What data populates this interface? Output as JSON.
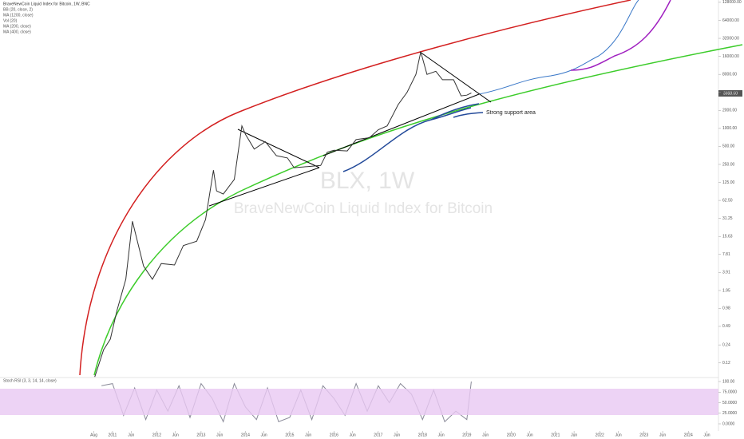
{
  "chart_data": {
    "type": "line",
    "title": "BraveNewCoin Liquid Index for Bitcoin, 1W, BNC",
    "indicators": [
      "BB (20, close, 2)",
      "MA (1200, close)",
      "Vol (20)",
      "MA (200, close)",
      "MA (400, close)"
    ],
    "watermark": "BLX, 1W",
    "watermark_subtitle": "BraveNewCoin Liquid Index for Bitcoin",
    "annotation": "Strong support area",
    "last_price_label": "3988.00",
    "log_scale": true,
    "color": "#333333",
    "x": [
      2010.6,
      2010.8,
      2010.95,
      2011.1,
      2011.3,
      2011.45,
      2011.55,
      2011.7,
      2011.9,
      2012.1,
      2012.4,
      2012.6,
      2012.9,
      2013.1,
      2013.28,
      2013.35,
      2013.5,
      2013.75,
      2013.92,
      2014.0,
      2014.2,
      2014.45,
      2014.7,
      2014.95,
      2015.1,
      2015.4,
      2015.7,
      2015.85,
      2016.0,
      2016.3,
      2016.5,
      2016.8,
      2017.0,
      2017.2,
      2017.45,
      2017.65,
      2017.85,
      2017.96,
      2018.1,
      2018.3,
      2018.45,
      2018.7,
      2018.87,
      2019.0,
      2019.1
    ],
    "values": [
      0.07,
      0.2,
      0.3,
      0.9,
      3,
      28,
      14,
      5,
      3,
      5.5,
      5.2,
      11,
      13,
      30,
      200,
      90,
      80,
      140,
      1100,
      800,
      450,
      600,
      350,
      320,
      220,
      230,
      240,
      400,
      430,
      420,
      650,
      700,
      950,
      1100,
      2500,
      4000,
      8000,
      19000,
      8000,
      9000,
      6500,
      6500,
      3500,
      3600,
      3900
    ],
    "xlim": [
      2008.46,
      2024.68
    ],
    "xticks": [
      {
        "value": 2010.58,
        "label": "Aug"
      },
      {
        "value": 2011,
        "label": "2011"
      },
      {
        "value": 2011.42,
        "label": "Jun"
      },
      {
        "value": 2012,
        "label": "2012"
      },
      {
        "value": 2012.42,
        "label": "Jun"
      },
      {
        "value": 2013,
        "label": "2013"
      },
      {
        "value": 2013.42,
        "label": "Jun"
      },
      {
        "value": 2014,
        "label": "2014"
      },
      {
        "value": 2014.42,
        "label": "Jun"
      },
      {
        "value": 2015,
        "label": "2015"
      },
      {
        "value": 2015.42,
        "label": "Jun"
      },
      {
        "value": 2016,
        "label": "2016"
      },
      {
        "value": 2016.42,
        "label": "Jun"
      },
      {
        "value": 2017,
        "label": "2017"
      },
      {
        "value": 2017.42,
        "label": "Jun"
      },
      {
        "value": 2018,
        "label": "2018"
      },
      {
        "value": 2018.42,
        "label": "Jun"
      },
      {
        "value": 2019,
        "label": "2019"
      },
      {
        "value": 2019.42,
        "label": "Jun"
      },
      {
        "value": 2020,
        "label": "2020"
      },
      {
        "value": 2020.42,
        "label": "Jun"
      },
      {
        "value": 2021,
        "label": "2021"
      },
      {
        "value": 2021.42,
        "label": "Jun"
      },
      {
        "value": 2022,
        "label": "2022"
      },
      {
        "value": 2022.42,
        "label": "Jun"
      },
      {
        "value": 2023,
        "label": "2023"
      },
      {
        "value": 2023.42,
        "label": "Jun"
      },
      {
        "value": 2024,
        "label": "2024"
      },
      {
        "value": 2024.42,
        "label": "Jun"
      }
    ],
    "ylim": [
      0.075,
      140000
    ],
    "yticks": [
      {
        "value": 128000,
        "label": "128000.00"
      },
      {
        "value": 64000,
        "label": "64000.00"
      },
      {
        "value": 32000,
        "label": "32000.00"
      },
      {
        "value": 16000,
        "label": "16000.00"
      },
      {
        "value": 8000,
        "label": "8000.00"
      },
      {
        "value": 4000,
        "label": "4000.00"
      },
      {
        "value": 2000,
        "label": "2000.00"
      },
      {
        "value": 1000,
        "label": "1000.00"
      },
      {
        "value": 500,
        "label": "500.00"
      },
      {
        "value": 250,
        "label": "250.00"
      },
      {
        "value": 125,
        "label": "125.00"
      },
      {
        "value": 62.5,
        "label": "62.50"
      },
      {
        "value": 31.25,
        "label": "31.25"
      },
      {
        "value": 15.63,
        "label": "15.63"
      },
      {
        "value": 7.81,
        "label": "7.81"
      },
      {
        "value": 3.91,
        "label": "3.91"
      },
      {
        "value": 1.95,
        "label": "1.95"
      },
      {
        "value": 0.98,
        "label": "0.98"
      },
      {
        "value": 0.49,
        "label": "0.49"
      },
      {
        "value": 0.24,
        "label": "0.24"
      },
      {
        "value": 0.12,
        "label": "0.12"
      }
    ],
    "stoch": {
      "title": "Stoch RSI (3, 3, 14, 14, close)",
      "color": "#8a8a99",
      "x": [
        2010.75,
        2011.0,
        2011.25,
        2011.5,
        2011.75,
        2012.0,
        2012.25,
        2012.5,
        2012.75,
        2013.0,
        2013.25,
        2013.5,
        2013.75,
        2014.0,
        2014.25,
        2014.5,
        2014.75,
        2015.0,
        2015.25,
        2015.5,
        2015.75,
        2016.0,
        2016.25,
        2016.5,
        2016.75,
        2017.0,
        2017.25,
        2017.5,
        2017.75,
        2018.0,
        2018.25,
        2018.5,
        2018.75,
        2019.0,
        2019.1
      ],
      "values": [
        90,
        95,
        20,
        85,
        10,
        80,
        30,
        90,
        15,
        95,
        60,
        5,
        95,
        40,
        10,
        85,
        5,
        15,
        80,
        10,
        90,
        60,
        20,
        95,
        30,
        90,
        50,
        95,
        70,
        10,
        80,
        5,
        30,
        10,
        100
      ],
      "ylim": [
        0,
        100
      ],
      "yticks": [
        {
          "value": 100,
          "label": "100.00"
        },
        {
          "value": 75,
          "label": "75.0000"
        },
        {
          "value": 50,
          "label": "50.0000"
        },
        {
          "value": 25,
          "label": "25.0000"
        },
        {
          "value": 0,
          "label": "0.0000"
        }
      ]
    }
  }
}
